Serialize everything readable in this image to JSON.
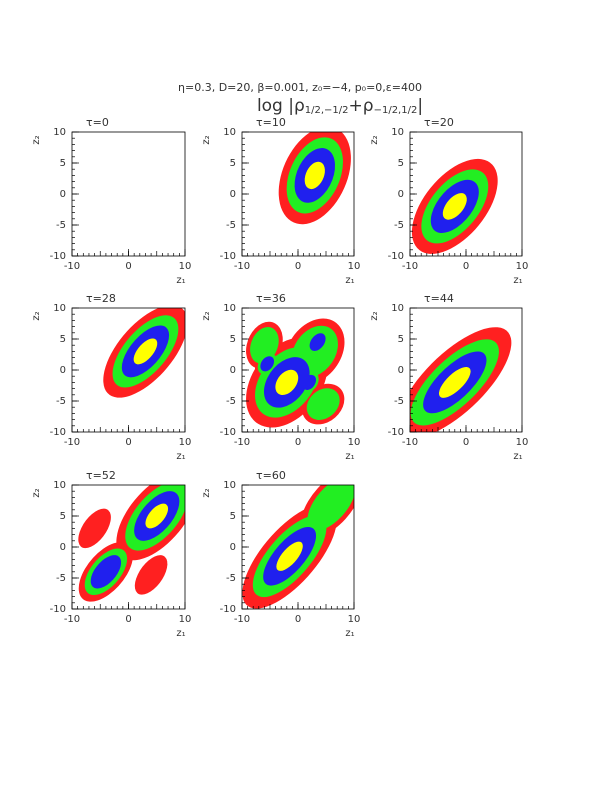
{
  "header": {
    "title": "η=0.3, D=20, β=0.001, z₀=−4, p₀=0,ε=400",
    "subtitle_parts": [
      "log |ρ",
      "1/2,−1/2",
      "+ρ",
      "−1/2,1/2",
      "|"
    ]
  },
  "chart_data": [
    {
      "type": "contour",
      "title": "τ=0",
      "xlabel": "z₁",
      "ylabel": "z₂",
      "xlim": [
        -10,
        10
      ],
      "ylim": [
        -10,
        10
      ],
      "xticks": [
        -10,
        0,
        10
      ],
      "yticks": [
        -10,
        -5,
        0,
        5,
        10
      ]
    },
    {
      "type": "contour",
      "title": "τ=10",
      "xlabel": "z₁",
      "ylabel": "z₂",
      "xlim": [
        -10,
        10
      ],
      "ylim": [
        -10,
        10
      ],
      "xticks": [
        -10,
        0,
        10
      ],
      "yticks": [
        -10,
        -5,
        0,
        5,
        10
      ]
    },
    {
      "type": "contour",
      "title": "τ=20",
      "xlabel": "z₁",
      "ylabel": "z₂",
      "xlim": [
        -10,
        10
      ],
      "ylim": [
        -10,
        10
      ],
      "xticks": [
        -10,
        0,
        10
      ],
      "yticks": [
        -10,
        -5,
        0,
        5,
        10
      ]
    },
    {
      "type": "contour",
      "title": "τ=28",
      "xlabel": "z₁",
      "ylabel": "z₂",
      "xlim": [
        -10,
        10
      ],
      "ylim": [
        -10,
        10
      ],
      "xticks": [
        -10,
        0,
        10
      ],
      "yticks": [
        -10,
        -5,
        0,
        5,
        10
      ]
    },
    {
      "type": "contour",
      "title": "τ=36",
      "xlabel": "z₁",
      "ylabel": "z₂",
      "xlim": [
        -10,
        10
      ],
      "ylim": [
        -10,
        10
      ],
      "xticks": [
        -10,
        0,
        10
      ],
      "yticks": [
        -10,
        -5,
        0,
        5,
        10
      ]
    },
    {
      "type": "contour",
      "title": "τ=44",
      "xlabel": "z₁",
      "ylabel": "z₂",
      "xlim": [
        -10,
        10
      ],
      "ylim": [
        -10,
        10
      ],
      "xticks": [
        -10,
        0,
        10
      ],
      "yticks": [
        -10,
        -5,
        0,
        5,
        10
      ]
    },
    {
      "type": "contour",
      "title": "τ=52",
      "xlabel": "z₁",
      "ylabel": "z₂",
      "xlim": [
        -10,
        10
      ],
      "ylim": [
        -10,
        10
      ],
      "xticks": [
        -10,
        0,
        10
      ],
      "yticks": [
        -10,
        -5,
        0,
        5,
        10
      ]
    },
    {
      "type": "contour",
      "title": "τ=60",
      "xlabel": "z₁",
      "ylabel": "z₂",
      "xlim": [
        -10,
        10
      ],
      "ylim": [
        -10,
        10
      ],
      "xticks": [
        -10,
        0,
        10
      ],
      "yticks": [
        -10,
        -5,
        0,
        5,
        10
      ]
    }
  ]
}
